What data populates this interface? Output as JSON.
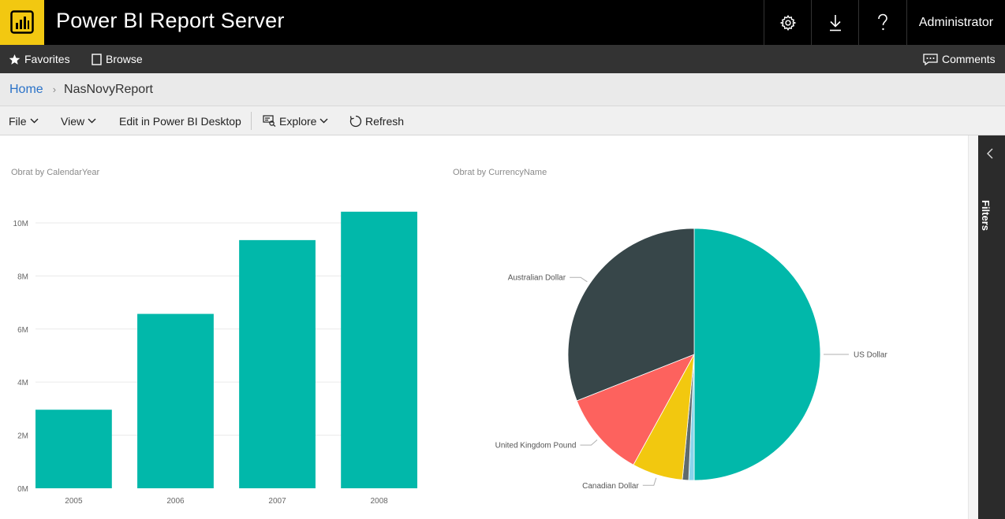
{
  "header": {
    "app_title": "Power BI Report Server",
    "user": "Administrator",
    "icons": [
      "powerbi-logo-icon",
      "gear-icon",
      "download-icon",
      "help-icon"
    ],
    "logo_color": "#f2c811"
  },
  "nav": {
    "favorites": "Favorites",
    "browse": "Browse",
    "comments": "Comments"
  },
  "breadcrumb": {
    "home": "Home",
    "current": "NasNovyReport"
  },
  "toolbar": {
    "file": "File",
    "view": "View",
    "edit": "Edit in Power BI Desktop",
    "explore": "Explore",
    "refresh": "Refresh"
  },
  "filters_pane": {
    "label": "Filters"
  },
  "chart_data": [
    {
      "type": "bar",
      "title": "Obrat by CalendarYear",
      "categories": [
        "2005",
        "2006",
        "2007",
        "2008"
      ],
      "values": [
        2.96,
        6.57,
        9.35,
        10.42
      ],
      "unit_suffix": "M",
      "yticks": [
        0,
        2,
        4,
        6,
        8,
        10
      ],
      "ylim": [
        0,
        10.8
      ],
      "grid": true,
      "color": "#01b8aa"
    },
    {
      "type": "pie",
      "title": "Obrat by CurrencyName",
      "slices": [
        {
          "label": "US Dollar",
          "value": 50.0,
          "color": "#01b8aa"
        },
        {
          "label": "",
          "value": 0.7,
          "color": "#8ad4eb"
        },
        {
          "label": "",
          "value": 0.8,
          "color": "#5f6b6d"
        },
        {
          "label": "Canadian Dollar",
          "value": 6.5,
          "color": "#f2c80f"
        },
        {
          "label": "United Kingdom Pound",
          "value": 11.0,
          "color": "#fd625e"
        },
        {
          "label": "Australian Dollar",
          "value": 31.0,
          "color": "#374649"
        }
      ]
    }
  ]
}
